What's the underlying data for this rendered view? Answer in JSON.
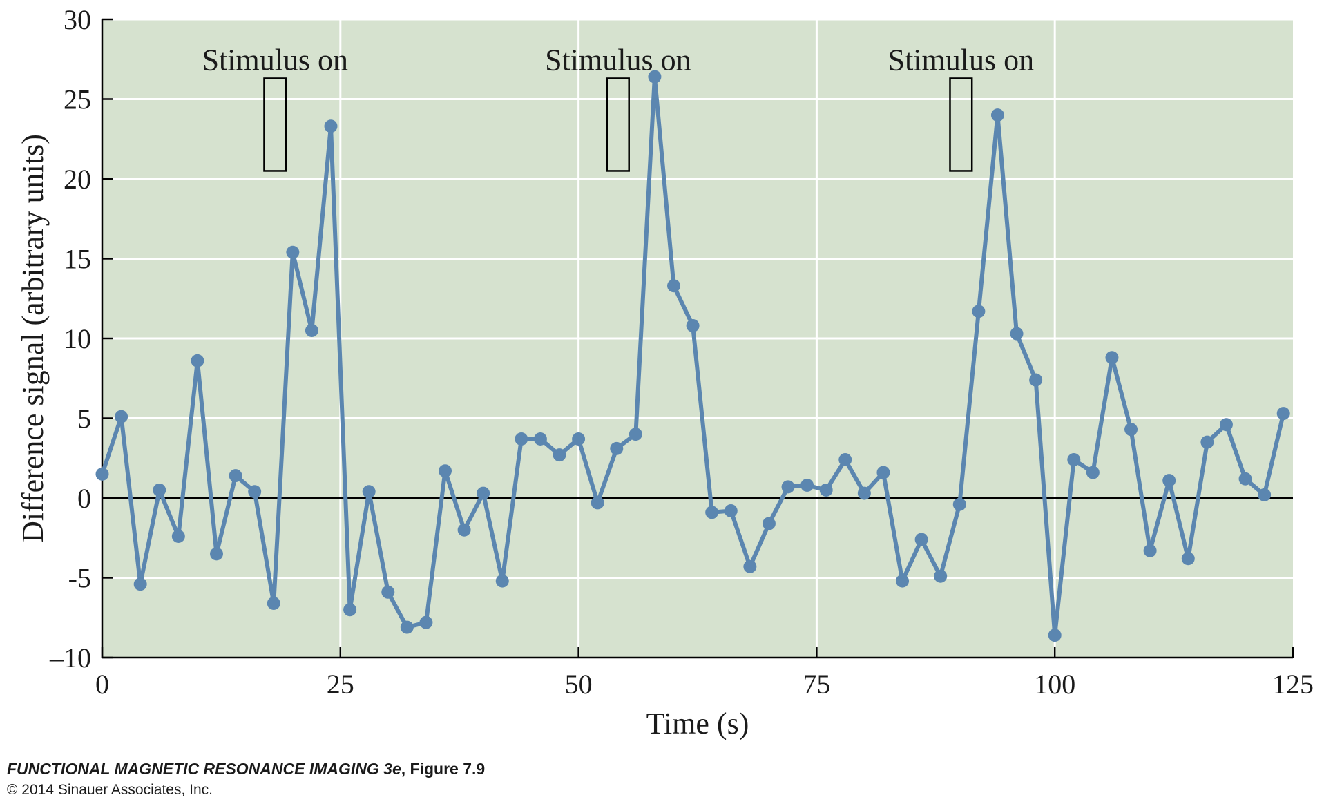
{
  "chart_data": {
    "type": "line",
    "xlabel": "Time (s)",
    "ylabel": "Difference signal (arbitrary units)",
    "xlim": [
      0,
      125
    ],
    "ylim": [
      -10,
      30
    ],
    "x_ticks": [
      0,
      25,
      50,
      75,
      100,
      125
    ],
    "x_tick_labels": [
      "0",
      "25",
      "50",
      "75",
      "100",
      "125"
    ],
    "y_ticks": [
      -10,
      -5,
      0,
      5,
      10,
      15,
      20,
      25,
      30
    ],
    "y_tick_labels": [
      "–10",
      "-5",
      "0",
      "5",
      "10",
      "15",
      "20",
      "25",
      "30"
    ],
    "grid": true,
    "background_color": "#d6e2cf",
    "grid_color": "#ffffff",
    "line_color": "#5b86b0",
    "zero_line_color": "#000000",
    "series": [
      {
        "x": [
          0,
          2,
          4,
          6,
          8,
          10,
          12,
          14,
          16,
          18,
          20,
          22,
          24,
          26,
          28,
          30,
          32,
          34,
          36,
          38,
          40,
          42,
          44,
          46,
          48,
          50,
          52,
          54,
          56,
          58,
          60,
          62,
          64,
          66,
          68,
          70,
          72,
          74,
          76,
          78,
          80,
          82,
          84,
          86,
          88,
          90,
          92,
          94,
          96,
          98,
          100,
          102,
          104,
          106,
          108,
          110,
          112,
          114,
          116,
          118,
          120,
          122,
          124
        ],
        "y": [
          1.5,
          5.1,
          -5.4,
          0.5,
          -2.4,
          8.6,
          -3.5,
          1.4,
          0.4,
          -6.6,
          15.4,
          10.5,
          23.3,
          -7.0,
          0.4,
          -5.9,
          -8.1,
          -7.8,
          1.7,
          -2.0,
          0.3,
          -5.2,
          3.7,
          3.7,
          2.7,
          3.7,
          -0.3,
          3.1,
          4.0,
          26.4,
          13.3,
          10.8,
          -0.9,
          -0.8,
          -4.3,
          -1.6,
          0.7,
          0.8,
          0.5,
          2.4,
          0.3,
          1.6,
          -5.2,
          -2.6,
          -4.9,
          -0.4,
          11.7,
          24.0,
          10.3,
          7.4,
          -8.6,
          2.4,
          1.6,
          8.8,
          4.3,
          -3.3,
          1.1,
          -3.8,
          3.5,
          4.6,
          1.2,
          0.2,
          5.3
        ]
      }
    ],
    "annotations": [
      {
        "text": "Stimulus on",
        "box_x": [
          17,
          19.3
        ],
        "box_y": [
          20.5,
          26.3
        ]
      },
      {
        "text": "Stimulus on",
        "box_x": [
          53,
          55.3
        ],
        "box_y": [
          20.5,
          26.3
        ]
      },
      {
        "text": "Stimulus on",
        "box_x": [
          89,
          91.3
        ],
        "box_y": [
          20.5,
          26.3
        ]
      }
    ]
  },
  "caption": {
    "book_title": "FUNCTIONAL MAGNETIC RESONANCE IMAGING 3e",
    "figure": ", Figure 7.9",
    "copyright": "© 2014 Sinauer Associates, Inc."
  }
}
